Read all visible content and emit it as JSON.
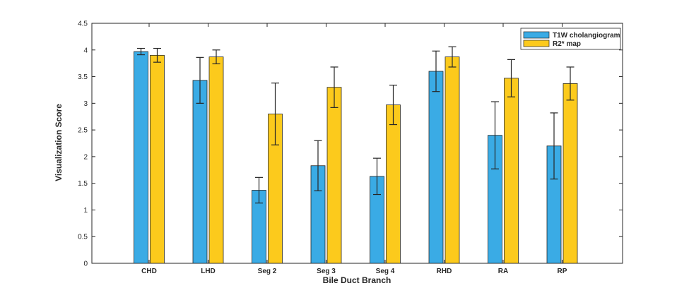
{
  "chart_data": {
    "type": "bar",
    "title": "",
    "xlabel": "Bile Duct Branch",
    "ylabel": "Visualization Score",
    "ylim": [
      0,
      4.5
    ],
    "yticks": [
      0,
      0.5,
      1,
      1.5,
      2,
      2.5,
      3,
      3.5,
      4,
      4.5
    ],
    "ytick_labels": [
      "0",
      "0.5",
      "1",
      "1.5",
      "2",
      "2.5",
      "3",
      "3.5",
      "4",
      "4.5"
    ],
    "categories": [
      "CHD",
      "LHD",
      "Seg 2",
      "Seg 3",
      "Seg 4",
      "RHD",
      "RA",
      "RP"
    ],
    "legend_position": "top-right",
    "series": [
      {
        "name": "T1W cholangiogram",
        "color": "#3aabe5",
        "values": [
          3.97,
          3.43,
          1.37,
          1.83,
          1.63,
          3.6,
          2.4,
          2.2
        ],
        "error": [
          0.06,
          0.43,
          0.24,
          0.47,
          0.34,
          0.38,
          0.63,
          0.62
        ]
      },
      {
        "name": "R2* map",
        "color": "#fcca1c",
        "values": [
          3.9,
          3.87,
          2.8,
          3.3,
          2.97,
          3.87,
          3.47,
          3.37
        ],
        "error": [
          0.13,
          0.13,
          0.58,
          0.38,
          0.37,
          0.19,
          0.35,
          0.31
        ]
      }
    ]
  }
}
